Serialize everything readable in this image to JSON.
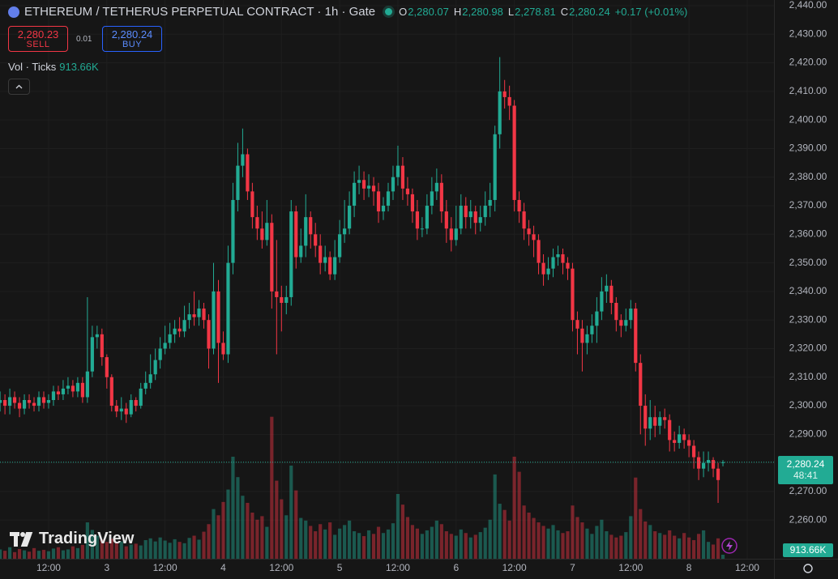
{
  "header": {
    "title": "ETHEREUM / TETHERUS PERPETUAL CONTRACT · 1h · Gate",
    "ohlc": [
      {
        "key": "O",
        "value": "2,280.07"
      },
      {
        "key": "H",
        "value": "2,280.98"
      },
      {
        "key": "L",
        "value": "2,278.81"
      },
      {
        "key": "C",
        "value": "2,280.24"
      }
    ],
    "change": "+0.17 (+0.01%)"
  },
  "trade": {
    "sell_price": "2,280.23",
    "sell": "SELL",
    "spread": "0.01",
    "buy_price": "2,280.24",
    "buy": "BUY"
  },
  "volume_legend": {
    "label": "Vol · Ticks",
    "value": "913.66K"
  },
  "logo": "TradingView",
  "chart_data": {
    "type": "candlestick",
    "up_color": "#22ab94",
    "down_color": "#f23645",
    "grid": true,
    "xlim": [
      -0.02,
      159.52
    ],
    "xticks": [
      {
        "value": 10,
        "label": "12:00"
      },
      {
        "value": 22,
        "label": "3"
      },
      {
        "value": 34,
        "label": "12:00"
      },
      {
        "value": 46,
        "label": "4"
      },
      {
        "value": 58,
        "label": "12:00"
      },
      {
        "value": 70,
        "label": "5"
      },
      {
        "value": 82,
        "label": "12:00"
      },
      {
        "value": 94,
        "label": "6"
      },
      {
        "value": 106,
        "label": "12:00"
      },
      {
        "value": 118,
        "label": "7"
      },
      {
        "value": 130,
        "label": "12:00"
      },
      {
        "value": 142,
        "label": "8"
      },
      {
        "value": 154,
        "label": "12:00"
      }
    ],
    "ylim": [
      2246.46,
      2441.98
    ],
    "yticks": [
      {
        "value": 2260,
        "label": "2,260.00"
      },
      {
        "value": 2270,
        "label": "2,270.00"
      },
      {
        "value": 2280,
        "label": "2,280.00"
      },
      {
        "value": 2290,
        "label": "2,290.00"
      },
      {
        "value": 2300,
        "label": "2,300.00"
      },
      {
        "value": 2310,
        "label": "2,310.00"
      },
      {
        "value": 2320,
        "label": "2,320.00"
      },
      {
        "value": 2330,
        "label": "2,330.00"
      },
      {
        "value": 2340,
        "label": "2,340.00"
      },
      {
        "value": 2350,
        "label": "2,350.00"
      },
      {
        "value": 2360,
        "label": "2,360.00"
      },
      {
        "value": 2370,
        "label": "2,370.00"
      },
      {
        "value": 2380,
        "label": "2,380.00"
      },
      {
        "value": 2390,
        "label": "2,390.00"
      },
      {
        "value": 2400,
        "label": "2,400.00"
      },
      {
        "value": 2410,
        "label": "2,410.00"
      },
      {
        "value": 2420,
        "label": "2,420.00"
      },
      {
        "value": 2430,
        "label": "2,430.00"
      },
      {
        "value": 2440,
        "label": "2,440.00"
      }
    ],
    "volume_lim": [
      0,
      36500
    ],
    "open": [
      2301,
      2302,
      2300,
      2303,
      2301,
      2299,
      2302,
      2301,
      2300,
      2303,
      2301,
      2302,
      2305,
      2304,
      2306,
      2307,
      2305,
      2308,
      2303,
      2312,
      2324,
      2325,
      2317,
      2310,
      2300,
      2298,
      2299,
      2297,
      2302,
      2300,
      2306,
      2308,
      2311,
      2316,
      2320,
      2322,
      2325,
      2327,
      2326,
      2330,
      2332,
      2331,
      2334,
      2330,
      2320,
      2340,
      2322,
      2318,
      2350,
      2372,
      2384,
      2388,
      2375,
      2366,
      2362,
      2358,
      2364,
      2340,
      2338,
      2336,
      2338,
      2368,
      2352,
      2356,
      2366,
      2360,
      2356,
      2350,
      2352,
      2346,
      2352,
      2360,
      2362,
      2370,
      2378,
      2379,
      2376,
      2377,
      2375,
      2368,
      2370,
      2375,
      2380,
      2384,
      2376,
      2374,
      2368,
      2362,
      2362,
      2370,
      2375,
      2378,
      2368,
      2362,
      2358,
      2362,
      2370,
      2366,
      2368,
      2364,
      2366,
      2370,
      2372,
      2395,
      2410,
      2408,
      2405,
      2372,
      2368,
      2362,
      2360,
      2358,
      2350,
      2346,
      2348,
      2352,
      2353,
      2350,
      2348,
      2330,
      2327,
      2322,
      2325,
      2328,
      2333,
      2340,
      2342,
      2336,
      2330,
      2328,
      2330,
      2334,
      2315,
      2300,
      2292,
      2296,
      2293,
      2296,
      2295,
      2288,
      2287,
      2290,
      2288,
      2286,
      2282,
      2278,
      2280,
      2281,
      2278,
      2280.07
    ],
    "high": [
      2305,
      2304,
      2306,
      2305,
      2303,
      2304,
      2304,
      2303,
      2305,
      2305,
      2304,
      2307,
      2307,
      2309,
      2310,
      2309,
      2310,
      2310,
      2338,
      2328,
      2328,
      2327,
      2318,
      2311,
      2302,
      2303,
      2301,
      2304,
      2303,
      2308,
      2312,
      2318,
      2320,
      2324,
      2328,
      2329,
      2330,
      2331,
      2335,
      2336,
      2340,
      2337,
      2336,
      2332,
      2350,
      2344,
      2326,
      2356,
      2378,
      2392,
      2397,
      2390,
      2378,
      2370,
      2368,
      2372,
      2367,
      2358,
      2342,
      2342,
      2372,
      2370,
      2362,
      2374,
      2368,
      2364,
      2360,
      2356,
      2354,
      2358,
      2365,
      2372,
      2375,
      2382,
      2384,
      2382,
      2381,
      2380,
      2378,
      2373,
      2378,
      2384,
      2391,
      2387,
      2380,
      2376,
      2372,
      2366,
      2374,
      2380,
      2383,
      2381,
      2372,
      2366,
      2370,
      2374,
      2373,
      2372,
      2370,
      2370,
      2375,
      2378,
      2398,
      2422,
      2414,
      2412,
      2407,
      2375,
      2371,
      2365,
      2363,
      2360,
      2353,
      2352,
      2355,
      2356,
      2355,
      2352,
      2350,
      2333,
      2330,
      2328,
      2332,
      2338,
      2345,
      2346,
      2344,
      2338,
      2332,
      2334,
      2337,
      2336,
      2318,
      2304,
      2302,
      2300,
      2298,
      2299,
      2297,
      2291,
      2293,
      2292,
      2290,
      2288,
      2284,
      2284,
      2284,
      2282,
      2280,
      2280.98
    ],
    "low": [
      2298,
      2297,
      2297,
      2299,
      2296,
      2297,
      2299,
      2298,
      2298,
      2299,
      2299,
      2300,
      2302,
      2302,
      2304,
      2303,
      2303,
      2301,
      2301,
      2310,
      2320,
      2314,
      2306,
      2298,
      2296,
      2295,
      2294,
      2296,
      2298,
      2299,
      2304,
      2306,
      2309,
      2313,
      2318,
      2320,
      2322,
      2324,
      2324,
      2327,
      2328,
      2328,
      2327,
      2313,
      2318,
      2308,
      2316,
      2315,
      2346,
      2368,
      2380,
      2372,
      2362,
      2358,
      2355,
      2356,
      2334,
      2318,
      2326,
      2332,
      2335,
      2348,
      2350,
      2352,
      2355,
      2352,
      2346,
      2347,
      2344,
      2344,
      2350,
      2357,
      2360,
      2366,
      2374,
      2372,
      2373,
      2370,
      2364,
      2365,
      2368,
      2372,
      2377,
      2372,
      2370,
      2364,
      2358,
      2359,
      2360,
      2367,
      2372,
      2364,
      2357,
      2354,
      2356,
      2360,
      2362,
      2362,
      2360,
      2361,
      2363,
      2366,
      2368,
      2390,
      2404,
      2400,
      2368,
      2364,
      2358,
      2356,
      2352,
      2346,
      2342,
      2344,
      2345,
      2349,
      2346,
      2344,
      2326,
      2318,
      2312,
      2318,
      2322,
      2322,
      2330,
      2336,
      2332,
      2326,
      2324,
      2326,
      2327,
      2312,
      2290,
      2286,
      2288,
      2289,
      2290,
      2292,
      2284,
      2284,
      2285,
      2285,
      2282,
      2278,
      2274,
      2275,
      2277,
      2275,
      2266,
      2278.81
    ],
    "close": [
      2302,
      2300,
      2303,
      2301,
      2299,
      2302,
      2301,
      2300,
      2303,
      2301,
      2302,
      2305,
      2304,
      2306,
      2307,
      2305,
      2308,
      2303,
      2312,
      2324,
      2325,
      2317,
      2310,
      2300,
      2298,
      2299,
      2297,
      2302,
      2300,
      2306,
      2308,
      2311,
      2316,
      2320,
      2322,
      2325,
      2327,
      2326,
      2330,
      2332,
      2331,
      2334,
      2330,
      2320,
      2340,
      2322,
      2318,
      2350,
      2372,
      2384,
      2388,
      2375,
      2366,
      2362,
      2358,
      2364,
      2340,
      2338,
      2336,
      2338,
      2368,
      2352,
      2356,
      2366,
      2360,
      2356,
      2350,
      2352,
      2346,
      2352,
      2360,
      2362,
      2370,
      2378,
      2379,
      2376,
      2377,
      2375,
      2368,
      2370,
      2375,
      2380,
      2384,
      2376,
      2374,
      2368,
      2362,
      2362,
      2370,
      2375,
      2378,
      2368,
      2362,
      2358,
      2362,
      2370,
      2366,
      2368,
      2364,
      2366,
      2370,
      2372,
      2395,
      2410,
      2408,
      2405,
      2372,
      2368,
      2362,
      2360,
      2358,
      2350,
      2346,
      2348,
      2352,
      2353,
      2350,
      2348,
      2330,
      2327,
      2322,
      2325,
      2328,
      2333,
      2340,
      2342,
      2336,
      2330,
      2328,
      2330,
      2334,
      2315,
      2300,
      2292,
      2296,
      2293,
      2296,
      2295,
      2288,
      2287,
      2290,
      2288,
      2286,
      2282,
      2278,
      2280,
      2281,
      2278,
      2274,
      2280.24
    ],
    "volume": [
      2100,
      1800,
      2600,
      1500,
      2200,
      1900,
      1600,
      2400,
      1800,
      2000,
      1700,
      2300,
      2600,
      1900,
      2100,
      2800,
      2400,
      3100,
      8200,
      6500,
      5200,
      4300,
      3800,
      4500,
      3600,
      3900,
      2800,
      3200,
      3400,
      3000,
      4200,
      4600,
      3900,
      4800,
      4100,
      3600,
      4400,
      3800,
      3500,
      4700,
      5200,
      4300,
      6100,
      7800,
      11200,
      9800,
      12800,
      15600,
      23000,
      18400,
      14200,
      12600,
      10400,
      8800,
      9600,
      7200,
      32000,
      17600,
      13400,
      9800,
      21000,
      15400,
      9200,
      8600,
      7400,
      6200,
      7800,
      6600,
      8200,
      5400,
      6800,
      7600,
      8600,
      6200,
      5800,
      5100,
      6400,
      5600,
      7200,
      5800,
      6600,
      8000,
      14600,
      12200,
      9400,
      7600,
      6800,
      5600,
      6400,
      7200,
      8600,
      7800,
      6200,
      5600,
      5200,
      6600,
      5800,
      4800,
      5400,
      6000,
      7000,
      8800,
      19000,
      12400,
      11000,
      8600,
      23000,
      19600,
      12000,
      10400,
      9200,
      8200,
      7400,
      6800,
      7600,
      6400,
      5800,
      6200,
      12000,
      9400,
      8200,
      6800,
      5600,
      7400,
      8800,
      6200,
      5400,
      4800,
      5200,
      6000,
      9600,
      18300,
      11200,
      8400,
      7600,
      6200,
      5800,
      5400,
      6400,
      5200,
      4600,
      5800,
      4800,
      4200,
      5600,
      6400,
      3800,
      3200,
      4600,
      913.66
    ],
    "last_price": {
      "value": 2280.24,
      "label": "2,280.24"
    },
    "countdown": "48:41",
    "last_volume_label": "913.66K"
  }
}
